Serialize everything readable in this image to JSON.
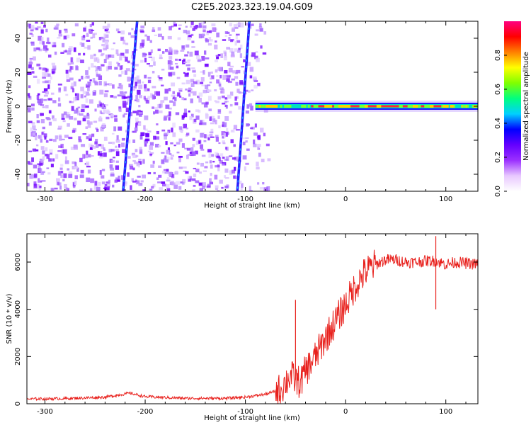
{
  "title": "C2E5.2023.323.19.04.G09",
  "chart_data": [
    {
      "type": "heatmap",
      "xlabel": "Height of straight line (km)",
      "ylabel": "Frequency (Hz)",
      "xlim": [
        -318,
        132
      ],
      "ylim": [
        -50,
        50
      ],
      "xticks": [
        -300,
        -200,
        -100,
        0,
        100
      ],
      "yticks": [
        -40,
        -20,
        0,
        20,
        40
      ],
      "colorbar": {
        "label": "Normalized spectral amplitude",
        "range": [
          0,
          1
        ],
        "ticks": [
          0.0,
          0.2,
          0.4,
          0.6,
          0.8
        ],
        "colormap": [
          "#ffffff",
          "#e8c8ff",
          "#9b30ff",
          "#6400ff",
          "#0000ff",
          "#00d0ff",
          "#00ff80",
          "#80ff00",
          "#ffff00",
          "#ff8000",
          "#ff0000",
          "#ff0080"
        ]
      },
      "features": {
        "noise_region_x": [
          -318,
          -78
        ],
        "slanted_streaks": [
          {
            "x_at_top": -208,
            "x_at_bottom": -222
          },
          {
            "x_at_top": -96,
            "x_at_bottom": -108
          }
        ],
        "carrier_line": {
          "x_start": -90,
          "x_end": 132,
          "frequency_hz": 0
        }
      }
    },
    {
      "type": "line",
      "xlabel": "Height of straight line (km)",
      "ylabel": "SNR (10 * v/v)",
      "xlim": [
        -318,
        132
      ],
      "ylim": [
        0,
        7200
      ],
      "xticks": [
        -300,
        -200,
        -100,
        0,
        100
      ],
      "yticks": [
        0,
        2000,
        4000,
        6000
      ],
      "color": "#e8201c",
      "series": [
        {
          "x": [
            -318,
            -280,
            -240,
            -215,
            -200,
            -160,
            -120,
            -100,
            -80,
            -65,
            -55,
            -50,
            -45,
            -40,
            -30,
            -20,
            -10,
            0,
            10,
            20,
            30,
            40,
            50,
            60,
            70,
            80,
            90,
            100,
            110,
            120,
            132
          ],
          "values": [
            200,
            220,
            280,
            450,
            300,
            230,
            230,
            280,
            400,
            600,
            1200,
            1000,
            900,
            1400,
            2000,
            2800,
            3500,
            4200,
            5000,
            5600,
            5900,
            6100,
            6100,
            6000,
            6000,
            6050,
            6050,
            5900,
            6000,
            5950,
            5900
          ]
        }
      ],
      "annotations": {
        "spikes": [
          {
            "x": -50,
            "y": 4400
          },
          {
            "x": 90,
            "y": 7100
          },
          {
            "x": 90,
            "y": 4000
          }
        ]
      }
    }
  ]
}
